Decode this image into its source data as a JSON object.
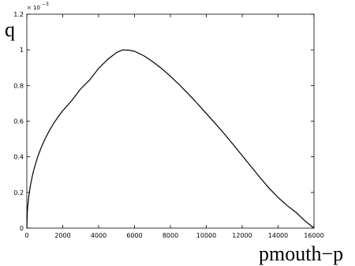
{
  "chart_data": {
    "type": "line",
    "title": "",
    "xlabel": "pmouth−p",
    "ylabel": "q",
    "xlim": [
      0,
      16000
    ],
    "ylim": [
      0,
      0.0012
    ],
    "y_scale_exponent_label": "× 10",
    "y_scale_exponent_power": "−3",
    "x_ticks": [
      0,
      2000,
      4000,
      6000,
      8000,
      10000,
      12000,
      14000,
      16000
    ],
    "x_tick_labels": [
      "0",
      "2000",
      "4000",
      "6000",
      "8000",
      "10000",
      "12000",
      "14000",
      "16000"
    ],
    "y_ticks": [
      0,
      0.0002,
      0.0004,
      0.0006,
      0.0008,
      0.001,
      0.0012
    ],
    "y_tick_labels": [
      "0",
      "0.2",
      "0.4",
      "0.6",
      "0.8",
      "1",
      "1.2"
    ],
    "grid": false,
    "legend": "none",
    "line_color": "#000000",
    "series": [
      {
        "x": [
          0,
          25,
          50,
          100,
          200,
          300,
          400,
          600,
          800,
          1000,
          1250,
          1500,
          1750,
          2000,
          2500,
          3000,
          3500,
          4000,
          4500,
          5000,
          5333,
          5700,
          6000,
          6500,
          7000,
          7500,
          8000,
          8500,
          9000,
          9500,
          10000,
          10500,
          11000,
          11500,
          12000,
          12500,
          13000,
          13500,
          14000,
          14500,
          15000,
          15500,
          15800,
          16000
        ],
        "y": [
          0.0,
          8.66e-05,
          0.000122,
          0.000171,
          0.000239,
          0.000289,
          0.000331,
          0.000398,
          0.000452,
          0.000497,
          0.000546,
          0.000588,
          0.000625,
          0.000658,
          0.000715,
          0.000781,
          0.000831,
          0.000896,
          0.000946,
          0.000985,
          0.001,
          0.000998,
          0.000992,
          0.000968,
          0.000935,
          0.000896,
          0.000852,
          0.000804,
          0.000753,
          0.000699,
          0.000643,
          0.000587,
          0.000529,
          0.000469,
          0.000407,
          0.000345,
          0.000283,
          0.000224,
          0.000172,
          0.000127,
          8.8e-05,
          4e-05,
          1.6e-05,
          0.0
        ]
      }
    ]
  }
}
